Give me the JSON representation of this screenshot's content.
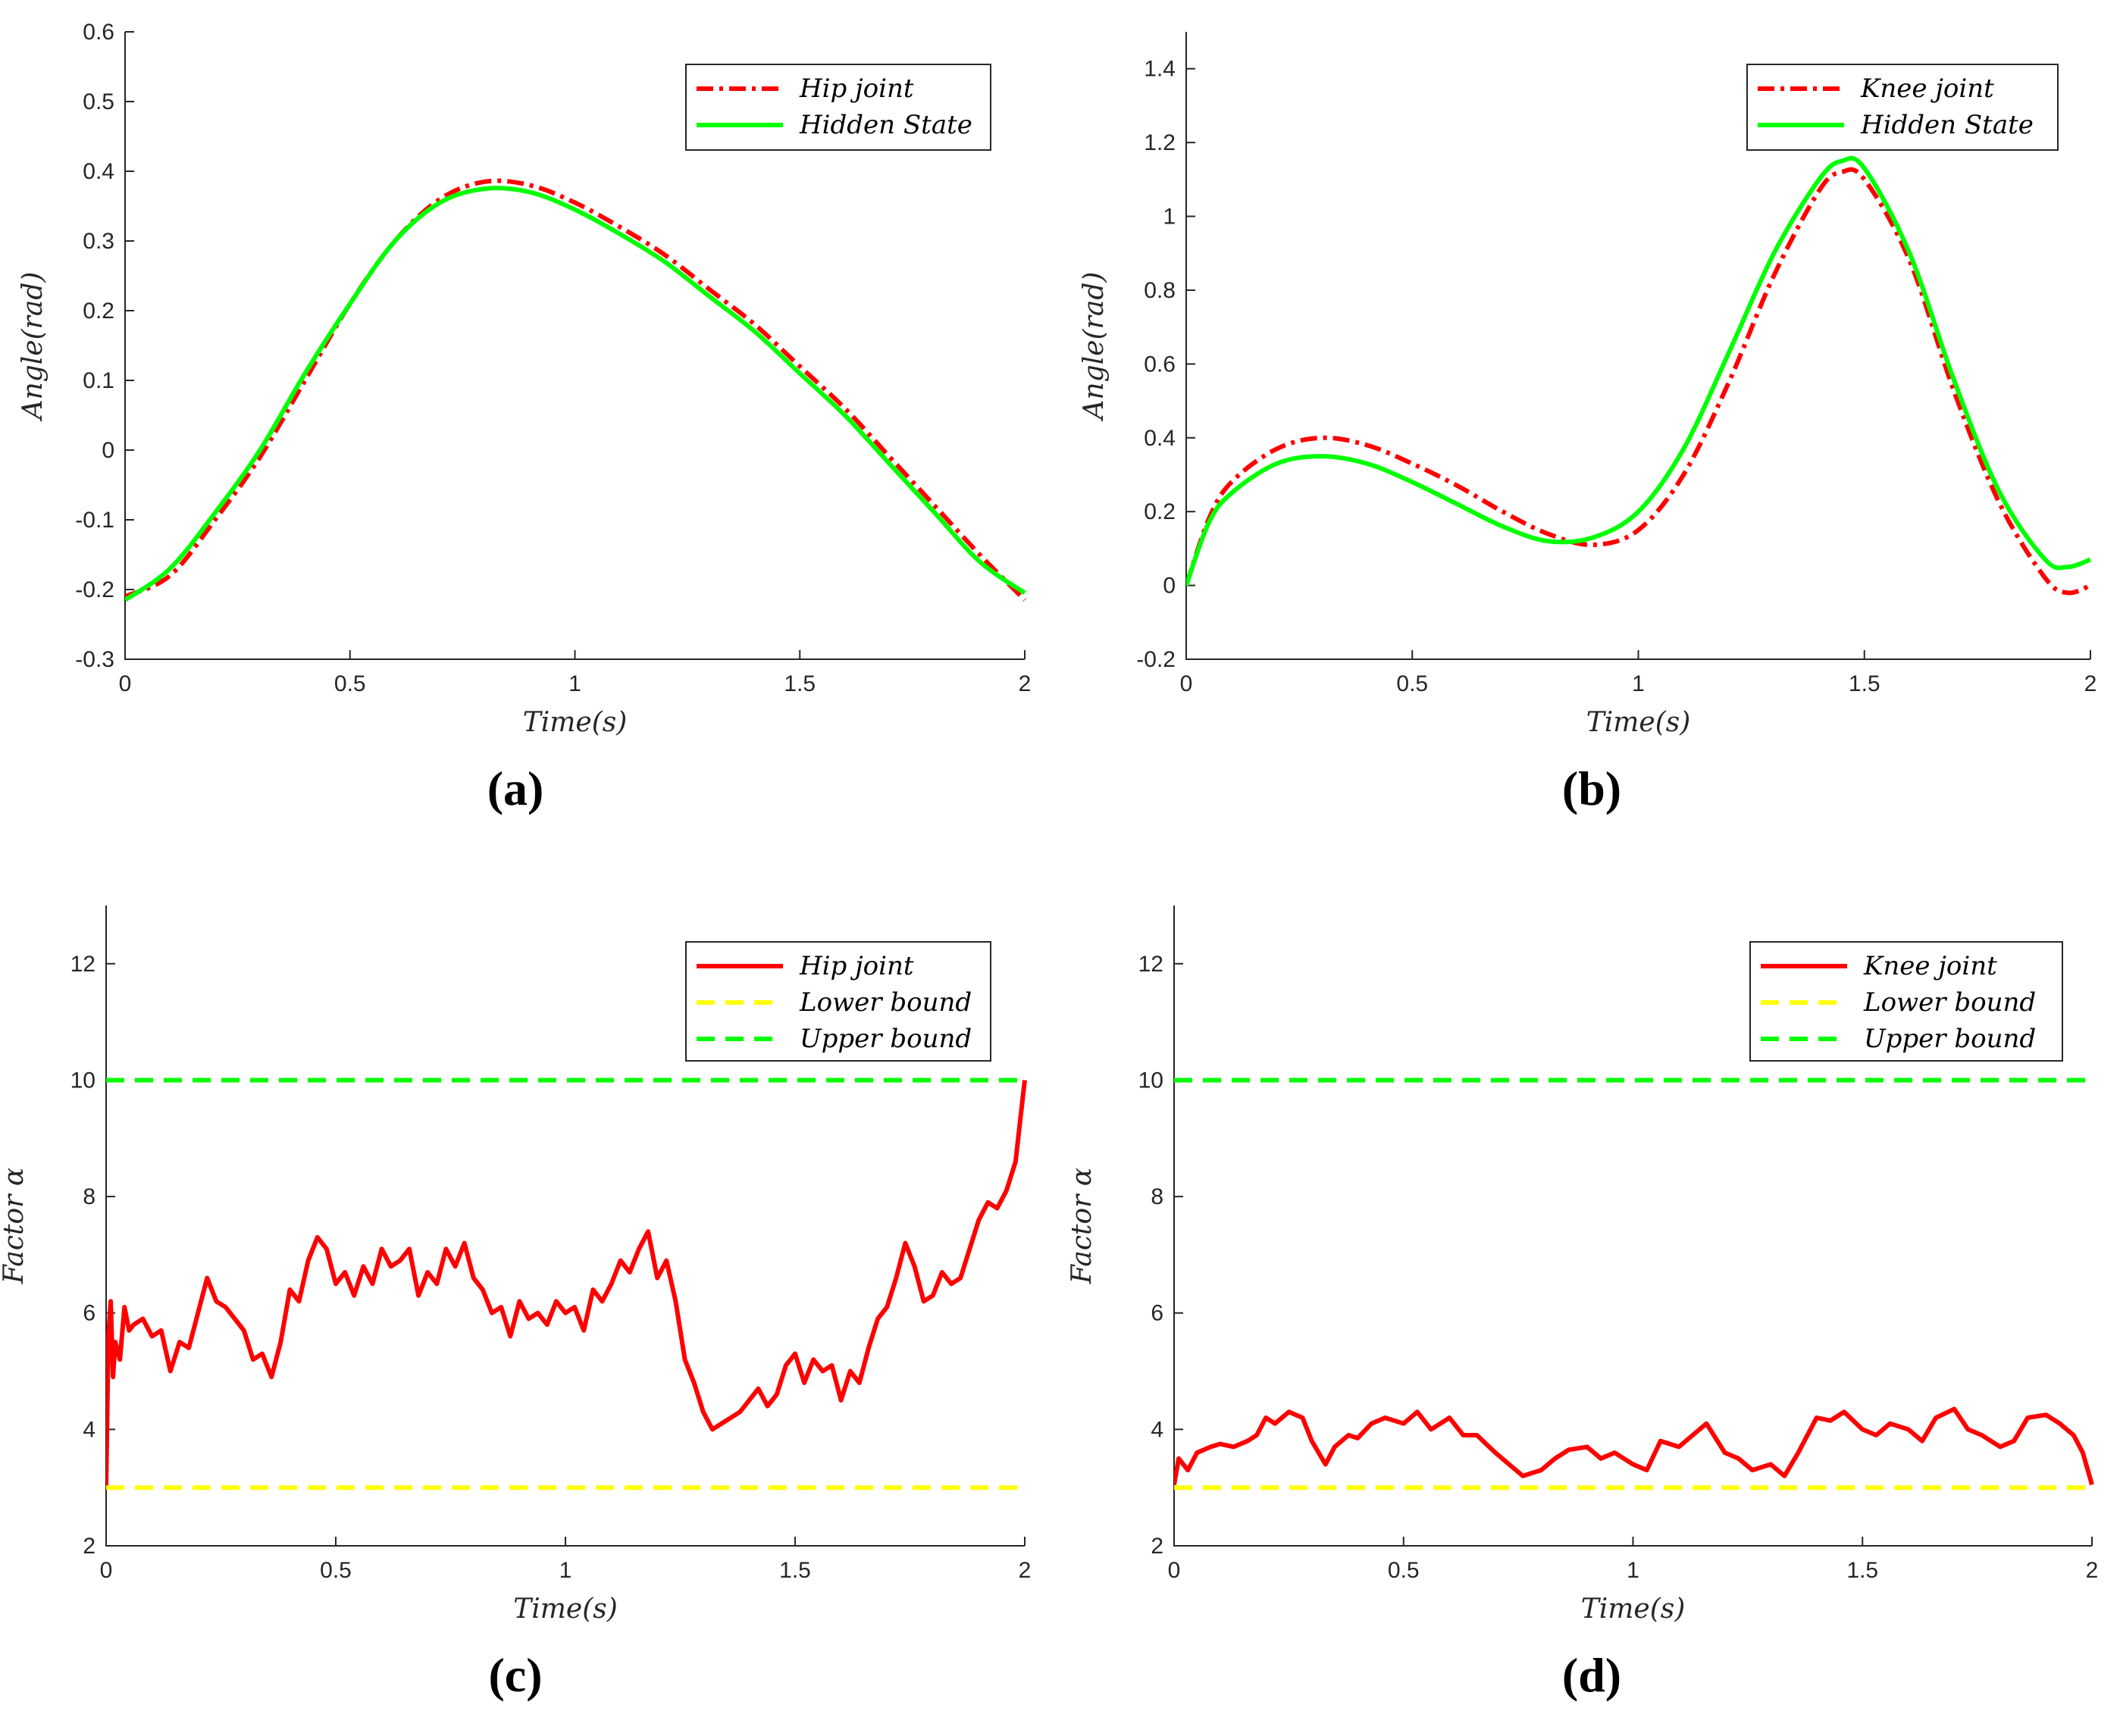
{
  "chart_data": [
    {
      "id": "a",
      "type": "line",
      "caption": "(a)",
      "xlabel": "Time(s)",
      "ylabel": "Angle(rad)",
      "xlim": [
        0,
        2
      ],
      "ylim": [
        -0.3,
        0.6
      ],
      "xticks": [
        0,
        0.5,
        1,
        1.5,
        2
      ],
      "xtick_labels": [
        "0",
        "0.5",
        "1",
        "1.5",
        "2"
      ],
      "yticks": [
        -0.3,
        -0.2,
        -0.1,
        0,
        0.1,
        0.2,
        0.3,
        0.4,
        0.5,
        0.6
      ],
      "ytick_labels": [
        "-0.3",
        "-0.2",
        "-0.1",
        "0",
        "0.1",
        "0.2",
        "0.3",
        "0.4",
        "0.5",
        "0.6"
      ],
      "legend_position": "top-right",
      "series": [
        {
          "name": "Hip joint",
          "color": "#ff0000",
          "style": "dashdot",
          "x": [
            0,
            0.1,
            0.2,
            0.3,
            0.4,
            0.5,
            0.6,
            0.7,
            0.8,
            0.9,
            1.0,
            1.1,
            1.2,
            1.3,
            1.4,
            1.5,
            1.6,
            1.7,
            1.8,
            1.9,
            2.0
          ],
          "y": [
            -0.21,
            -0.18,
            -0.1,
            -0.01,
            0.1,
            0.21,
            0.3,
            0.36,
            0.385,
            0.38,
            0.355,
            0.32,
            0.28,
            0.23,
            0.18,
            0.12,
            0.06,
            -0.01,
            -0.08,
            -0.15,
            -0.215
          ]
        },
        {
          "name": "Hidden State",
          "color": "#00ff00",
          "style": "solid",
          "x": [
            0,
            0.1,
            0.2,
            0.3,
            0.4,
            0.5,
            0.6,
            0.7,
            0.8,
            0.9,
            1.0,
            1.1,
            1.2,
            1.3,
            1.4,
            1.5,
            1.6,
            1.7,
            1.8,
            1.9,
            2.0
          ],
          "y": [
            -0.215,
            -0.17,
            -0.09,
            0.0,
            0.11,
            0.21,
            0.3,
            0.355,
            0.375,
            0.37,
            0.345,
            0.31,
            0.27,
            0.22,
            0.17,
            0.11,
            0.05,
            -0.02,
            -0.09,
            -0.16,
            -0.205
          ]
        }
      ]
    },
    {
      "id": "b",
      "type": "line",
      "caption": "(b)",
      "xlabel": "Time(s)",
      "ylabel": "Angle(rad)",
      "xlim": [
        0,
        2
      ],
      "ylim": [
        -0.2,
        1.5
      ],
      "xticks": [
        0,
        0.5,
        1,
        1.5,
        2
      ],
      "xtick_labels": [
        "0",
        "0.5",
        "1",
        "1.5",
        "2"
      ],
      "yticks": [
        -0.2,
        0,
        0.2,
        0.4,
        0.6,
        0.8,
        1,
        1.2,
        1.4
      ],
      "ytick_labels": [
        "-0.2",
        "0",
        "0.2",
        "0.4",
        "0.6",
        "0.8",
        "1",
        "1.2",
        "1.4"
      ],
      "legend_position": "top-right",
      "series": [
        {
          "name": "Knee joint",
          "color": "#ff0000",
          "style": "dashdot",
          "x": [
            0,
            0.05,
            0.1,
            0.2,
            0.3,
            0.4,
            0.5,
            0.6,
            0.7,
            0.8,
            0.9,
            1.0,
            1.1,
            1.2,
            1.3,
            1.4,
            1.45,
            1.5,
            1.6,
            1.7,
            1.8,
            1.9,
            1.95,
            2.0
          ],
          "y": [
            0.0,
            0.18,
            0.28,
            0.37,
            0.4,
            0.38,
            0.33,
            0.27,
            0.2,
            0.14,
            0.11,
            0.15,
            0.3,
            0.55,
            0.84,
            1.07,
            1.12,
            1.1,
            0.88,
            0.52,
            0.22,
            0.02,
            -0.02,
            0.0
          ]
        },
        {
          "name": "Hidden State",
          "color": "#00ff00",
          "style": "solid",
          "x": [
            0,
            0.05,
            0.1,
            0.2,
            0.3,
            0.4,
            0.5,
            0.6,
            0.7,
            0.8,
            0.9,
            1.0,
            1.1,
            1.2,
            1.3,
            1.4,
            1.45,
            1.5,
            1.6,
            1.7,
            1.8,
            1.9,
            1.95,
            2.0
          ],
          "y": [
            0.0,
            0.17,
            0.25,
            0.33,
            0.35,
            0.33,
            0.28,
            0.22,
            0.16,
            0.12,
            0.13,
            0.2,
            0.37,
            0.63,
            0.9,
            1.1,
            1.15,
            1.13,
            0.9,
            0.55,
            0.25,
            0.07,
            0.05,
            0.07
          ]
        }
      ]
    },
    {
      "id": "c",
      "type": "line",
      "caption": "(c)",
      "xlabel": "Time(s)",
      "ylabel": "Factor α",
      "xlim": [
        0,
        2
      ],
      "ylim": [
        2,
        13
      ],
      "xticks": [
        0,
        0.5,
        1,
        1.5,
        2
      ],
      "xtick_labels": [
        "0",
        "0.5",
        "1",
        "1.5",
        "2"
      ],
      "yticks": [
        2,
        4,
        6,
        8,
        10,
        12
      ],
      "ytick_labels": [
        "2",
        "4",
        "6",
        "8",
        "10",
        "12"
      ],
      "legend_position": "top-right",
      "series": [
        {
          "name": "Hip joint",
          "color": "#ff0000",
          "style": "solid",
          "x": [
            0.0,
            0.005,
            0.01,
            0.015,
            0.02,
            0.03,
            0.04,
            0.05,
            0.06,
            0.08,
            0.1,
            0.12,
            0.14,
            0.16,
            0.18,
            0.2,
            0.22,
            0.24,
            0.26,
            0.28,
            0.3,
            0.32,
            0.34,
            0.36,
            0.38,
            0.4,
            0.42,
            0.44,
            0.46,
            0.48,
            0.5,
            0.52,
            0.54,
            0.56,
            0.58,
            0.6,
            0.62,
            0.64,
            0.66,
            0.68,
            0.7,
            0.72,
            0.74,
            0.76,
            0.78,
            0.8,
            0.82,
            0.84,
            0.86,
            0.88,
            0.9,
            0.92,
            0.94,
            0.96,
            0.98,
            1.0,
            1.02,
            1.04,
            1.06,
            1.08,
            1.1,
            1.12,
            1.14,
            1.16,
            1.18,
            1.2,
            1.22,
            1.24,
            1.26,
            1.28,
            1.3,
            1.32,
            1.34,
            1.36,
            1.38,
            1.4,
            1.42,
            1.44,
            1.46,
            1.48,
            1.5,
            1.52,
            1.54,
            1.56,
            1.58,
            1.6,
            1.62,
            1.64,
            1.66,
            1.68,
            1.7,
            1.72,
            1.74,
            1.76,
            1.78,
            1.8,
            1.82,
            1.84,
            1.86,
            1.88,
            1.9,
            1.92,
            1.94,
            1.96,
            1.98,
            1.99,
            2.0
          ],
          "y": [
            3.0,
            5.6,
            6.2,
            4.9,
            5.5,
            5.2,
            6.1,
            5.7,
            5.8,
            5.9,
            5.6,
            5.7,
            5.0,
            5.5,
            5.4,
            6.0,
            6.6,
            6.2,
            6.1,
            5.9,
            5.7,
            5.2,
            5.3,
            4.9,
            5.5,
            6.4,
            6.2,
            6.9,
            7.3,
            7.1,
            6.5,
            6.7,
            6.3,
            6.8,
            6.5,
            7.1,
            6.8,
            6.9,
            7.1,
            6.3,
            6.7,
            6.5,
            7.1,
            6.8,
            7.2,
            6.6,
            6.4,
            6.0,
            6.1,
            5.6,
            6.2,
            5.9,
            6.0,
            5.8,
            6.2,
            6.0,
            6.1,
            5.7,
            6.4,
            6.2,
            6.5,
            6.9,
            6.7,
            7.1,
            7.4,
            6.6,
            6.9,
            6.2,
            5.2,
            4.8,
            4.3,
            4.0,
            4.1,
            4.2,
            4.3,
            4.5,
            4.7,
            4.4,
            4.6,
            5.1,
            5.3,
            4.8,
            5.2,
            5.0,
            5.1,
            4.5,
            5.0,
            4.8,
            5.4,
            5.9,
            6.1,
            6.6,
            7.2,
            6.8,
            6.2,
            6.3,
            6.7,
            6.5,
            6.6,
            7.1,
            7.6,
            7.9,
            7.8,
            8.1,
            8.6,
            9.3,
            10.0
          ]
        },
        {
          "name": "Lower bound",
          "color": "#ffff00",
          "style": "dashed",
          "x": [
            0,
            2
          ],
          "y": [
            3,
            3
          ]
        },
        {
          "name": "Upper bound",
          "color": "#00ff00",
          "style": "dashed",
          "x": [
            0,
            2
          ],
          "y": [
            10,
            10
          ]
        }
      ]
    },
    {
      "id": "d",
      "type": "line",
      "caption": "(d)",
      "xlabel": "Time(s)",
      "ylabel": "Factor α",
      "xlim": [
        0,
        2
      ],
      "ylim": [
        2,
        13
      ],
      "xticks": [
        0,
        0.5,
        1,
        1.5,
        2
      ],
      "xtick_labels": [
        "0",
        "0.5",
        "1",
        "1.5",
        "2"
      ],
      "yticks": [
        2,
        4,
        6,
        8,
        10,
        12
      ],
      "ytick_labels": [
        "2",
        "4",
        "6",
        "8",
        "10",
        "12"
      ],
      "legend_position": "top-right",
      "series": [
        {
          "name": "Knee joint",
          "color": "#ff0000",
          "style": "solid",
          "x": [
            0.0,
            0.01,
            0.03,
            0.05,
            0.08,
            0.1,
            0.13,
            0.16,
            0.18,
            0.2,
            0.22,
            0.25,
            0.28,
            0.3,
            0.33,
            0.35,
            0.38,
            0.4,
            0.43,
            0.46,
            0.5,
            0.53,
            0.56,
            0.6,
            0.63,
            0.66,
            0.7,
            0.73,
            0.76,
            0.8,
            0.83,
            0.86,
            0.9,
            0.93,
            0.96,
            1.0,
            1.03,
            1.06,
            1.1,
            1.13,
            1.16,
            1.2,
            1.23,
            1.26,
            1.3,
            1.33,
            1.36,
            1.4,
            1.43,
            1.46,
            1.5,
            1.53,
            1.56,
            1.6,
            1.63,
            1.66,
            1.7,
            1.73,
            1.76,
            1.8,
            1.83,
            1.86,
            1.9,
            1.93,
            1.96,
            1.98,
            2.0
          ],
          "y": [
            3.05,
            3.5,
            3.3,
            3.6,
            3.7,
            3.75,
            3.7,
            3.8,
            3.9,
            4.2,
            4.1,
            4.3,
            4.2,
            3.8,
            3.4,
            3.7,
            3.9,
            3.85,
            4.1,
            4.2,
            4.1,
            4.3,
            4.0,
            4.2,
            3.9,
            3.9,
            3.6,
            3.4,
            3.2,
            3.3,
            3.5,
            3.65,
            3.7,
            3.5,
            3.6,
            3.4,
            3.3,
            3.8,
            3.7,
            3.9,
            4.1,
            3.6,
            3.5,
            3.3,
            3.4,
            3.2,
            3.6,
            4.2,
            4.15,
            4.3,
            4.0,
            3.9,
            4.1,
            4.0,
            3.8,
            4.2,
            4.35,
            4.0,
            3.9,
            3.7,
            3.8,
            4.2,
            4.25,
            4.1,
            3.9,
            3.6,
            3.05
          ]
        },
        {
          "name": "Lower bound",
          "color": "#ffff00",
          "style": "dashed",
          "x": [
            0,
            2
          ],
          "y": [
            3,
            3
          ]
        },
        {
          "name": "Upper bound",
          "color": "#00ff00",
          "style": "dashed",
          "x": [
            0,
            2
          ],
          "y": [
            10,
            10
          ]
        }
      ]
    }
  ]
}
